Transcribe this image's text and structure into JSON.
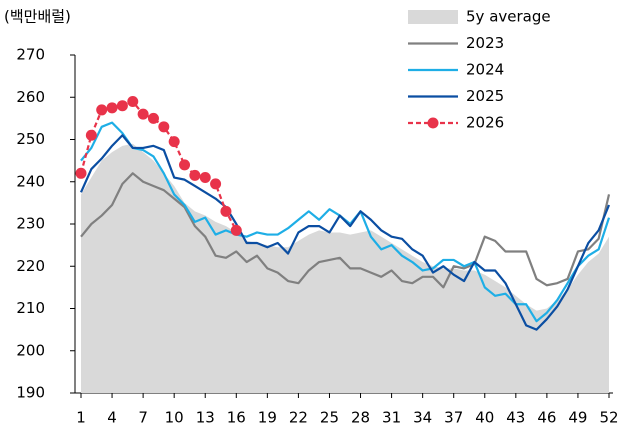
{
  "chart_data": {
    "type": "line",
    "ylabel": "(백만배럴)",
    "x": [
      1,
      2,
      3,
      4,
      5,
      6,
      7,
      8,
      9,
      10,
      11,
      12,
      13,
      14,
      15,
      16,
      17,
      18,
      19,
      20,
      21,
      22,
      23,
      24,
      25,
      26,
      27,
      28,
      29,
      30,
      31,
      32,
      33,
      34,
      35,
      36,
      37,
      38,
      39,
      40,
      41,
      42,
      43,
      44,
      45,
      46,
      47,
      48,
      49,
      50,
      51,
      52
    ],
    "xlim": [
      1,
      52
    ],
    "xticks": [
      1,
      4,
      7,
      10,
      13,
      16,
      19,
      22,
      25,
      28,
      31,
      34,
      37,
      40,
      43,
      46,
      49,
      52
    ],
    "ylim": [
      190,
      270
    ],
    "yticks": [
      190,
      200,
      210,
      220,
      230,
      240,
      250,
      260,
      270
    ],
    "legend": "top-right",
    "series": [
      {
        "name": "5y average",
        "color": "#d9d9d9",
        "kind": "area",
        "values": [
          237,
          241,
          245,
          247,
          248.5,
          249,
          247,
          245,
          242,
          239,
          235,
          233,
          232,
          230.5,
          229.5,
          228,
          226,
          225.5,
          225,
          224.5,
          224.5,
          226,
          227.5,
          228.5,
          228,
          228,
          227.5,
          228,
          228.5,
          227,
          225.5,
          224,
          222.5,
          221,
          220,
          219.5,
          219.5,
          219,
          219,
          218,
          216.5,
          215,
          213,
          211,
          209.5,
          210,
          212,
          214.5,
          218,
          221,
          223,
          227
        ]
      },
      {
        "name": "2023",
        "color": "#808080",
        "kind": "line",
        "values": [
          227,
          230,
          232,
          234.5,
          239.5,
          242,
          240,
          239,
          238,
          236,
          234,
          229.5,
          227,
          222.5,
          222,
          223.5,
          221,
          222.5,
          219.5,
          218.5,
          216.5,
          216,
          219,
          221,
          221.5,
          222,
          219.5,
          219.5,
          218.5,
          217.5,
          219,
          216.5,
          216,
          217.5,
          217.5,
          215,
          220,
          219.5,
          220.5,
          227,
          226,
          223.5,
          223.5,
          223.5,
          217,
          215.5,
          216,
          217,
          223.5,
          224,
          226.5,
          237
        ]
      },
      {
        "name": "2024",
        "color": "#1eaee6",
        "kind": "line",
        "values": [
          245,
          248,
          253,
          254,
          251.5,
          248,
          247.5,
          246,
          242,
          237,
          234.5,
          230.5,
          231.5,
          227.5,
          228.5,
          227.5,
          227,
          228,
          227.5,
          227.5,
          229,
          231,
          233,
          231,
          233.5,
          232,
          230,
          233,
          227,
          224,
          225,
          222.5,
          221,
          219,
          219.5,
          221.5,
          221.5,
          220,
          221,
          215,
          213,
          213.5,
          211,
          211,
          207,
          209,
          212,
          216,
          220,
          222.5,
          224,
          231.5
        ]
      },
      {
        "name": "2025",
        "color": "#0b4ea2",
        "kind": "line",
        "values": [
          237.5,
          243,
          245.5,
          248.5,
          251,
          248,
          248,
          248.5,
          247.5,
          241,
          240.5,
          239,
          237.5,
          236,
          234,
          230,
          225.5,
          225.5,
          224.5,
          225.5,
          223,
          228,
          229.5,
          229.5,
          228,
          232,
          229.5,
          233,
          231,
          228.5,
          227,
          226.5,
          224,
          222.5,
          218.5,
          220,
          218,
          216.5,
          221,
          219,
          219,
          216,
          211,
          206,
          205,
          207.5,
          210.5,
          214.5,
          220,
          225.5,
          228.5,
          234.5
        ]
      },
      {
        "name": "2026",
        "color": "#e8334a",
        "kind": "line",
        "dashed": true,
        "markers": true,
        "values": [
          242,
          251,
          257,
          257.5,
          258,
          259,
          256,
          255,
          253,
          249.5,
          244,
          241.5,
          241,
          239.5,
          233,
          228.5,
          null,
          null,
          null,
          null,
          null,
          null,
          null,
          null,
          null,
          null,
          null,
          null,
          null,
          null,
          null,
          null,
          null,
          null,
          null,
          null,
          null,
          null,
          null,
          null,
          null,
          null,
          null,
          null,
          null,
          null,
          null,
          null,
          null,
          null,
          null,
          null
        ]
      }
    ]
  }
}
